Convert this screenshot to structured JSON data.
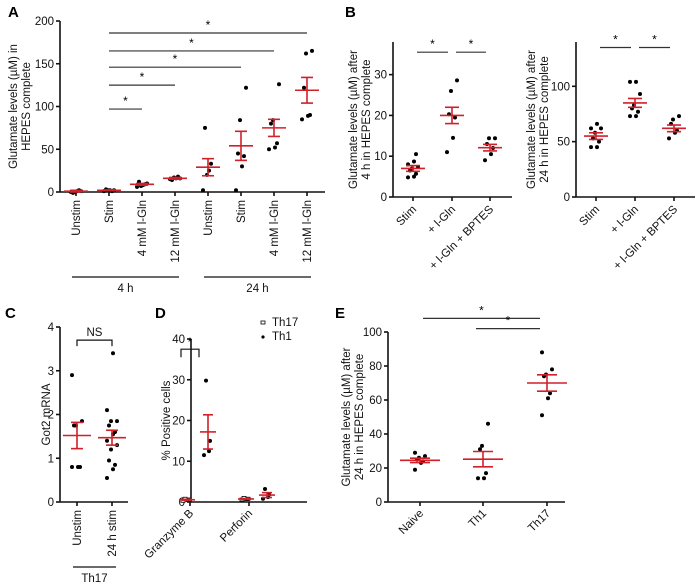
{
  "colors": {
    "mean_sem": "#d0202a",
    "points": "#000000",
    "axis": "#111111"
  },
  "chart_data": [
    {
      "panel": "A",
      "type": "scatter",
      "ylabel": "Glutamate levels (µM) in HEPES complete",
      "ylim": [
        0,
        200
      ],
      "yticks": [
        0,
        50,
        100,
        150,
        200
      ],
      "categories": [
        "Unstim",
        "Stim",
        "4 mM l-Gln",
        "12 mM l-Gln",
        "Unstim",
        "Stim",
        "4 mM l-Gln",
        "12 mM l-Gln"
      ],
      "groups": [
        {
          "label": "4 h",
          "from": 0,
          "to": 3
        },
        {
          "label": "24 h",
          "from": 4,
          "to": 7
        }
      ],
      "points": [
        [
          0,
          1,
          2,
          -1,
          0,
          1
        ],
        [
          1,
          2,
          1,
          3,
          2,
          2
        ],
        [
          6,
          8,
          9,
          12,
          7,
          10
        ],
        [
          15,
          16,
          18,
          14,
          17,
          16
        ],
        [
          2,
          25,
          33,
          75,
          20
        ],
        [
          2,
          30,
          42,
          45,
          84,
          122
        ],
        [
          50,
          52,
          57,
          80,
          84,
          126
        ],
        [
          85,
          89,
          90,
          122,
          162,
          165
        ]
      ],
      "mean": [
        1,
        2,
        9,
        16,
        29,
        54,
        75,
        119
      ],
      "sem": [
        1,
        0.5,
        1,
        1,
        10,
        17,
        10,
        15
      ],
      "significance": [
        {
          "from": 1,
          "to": 2,
          "label": "*",
          "level": 97
        },
        {
          "from": 1,
          "to": 3,
          "label": "*",
          "level": 125
        },
        {
          "from": 1,
          "to": 5,
          "label": "*",
          "level": 146
        },
        {
          "from": 1,
          "to": 6,
          "label": "*",
          "level": 165
        },
        {
          "from": 1,
          "to": 7,
          "label": "*",
          "level": 186
        }
      ]
    },
    {
      "panel": "B-left",
      "type": "scatter",
      "ylabel": "Glutamate levels (µM) after 4 h in HEPES complete",
      "ylim": [
        0,
        38
      ],
      "yticks": [
        0,
        10,
        20,
        30
      ],
      "categories": [
        "Stim",
        "+ l-Gln",
        "+ l-Gln + BPTES"
      ],
      "points": [
        [
          4.8,
          5.0,
          5.7,
          6.5,
          7.0,
          7.4,
          8.0,
          8.7,
          10.5
        ],
        [
          11,
          14.5,
          19.5,
          20.3,
          26,
          28.6
        ],
        [
          9.0,
          10.5,
          12.0,
          13.0,
          14.4,
          14.4
        ]
      ],
      "mean": [
        7.0,
        20.0,
        12.1
      ],
      "sem": [
        0.7,
        2.0,
        0.8
      ],
      "significance": [
        {
          "from": 0,
          "to": 1,
          "label": "*",
          "level": 35.5
        },
        {
          "from": 1,
          "to": 2,
          "label": "*",
          "level": 35.5
        }
      ]
    },
    {
      "panel": "B-right",
      "type": "scatter",
      "ylabel": "Glutamate levels (µM) after 24 h in HEPES complete",
      "ylim": [
        0,
        140
      ],
      "yticks": [
        0,
        50,
        100
      ],
      "categories": [
        "Stim",
        "+ l-Gln",
        "+ l-Gln + BPTES"
      ],
      "points": [
        [
          45,
          45,
          50,
          53,
          58,
          62,
          62,
          66
        ],
        [
          73,
          73,
          77,
          80,
          83,
          93,
          104,
          104
        ],
        [
          53,
          58,
          60,
          66,
          70,
          73
        ]
      ],
      "mean": [
        55,
        85,
        62
      ],
      "sem": [
        3,
        4,
        3
      ],
      "significance": [
        {
          "from": 0,
          "to": 1,
          "label": "*",
          "level": 135
        },
        {
          "from": 1,
          "to": 2,
          "label": "*",
          "level": 135
        }
      ]
    },
    {
      "panel": "C",
      "type": "scatter",
      "ylabel": "Got2 mRNA",
      "ylim": [
        0,
        4
      ],
      "yticks": [
        0,
        1,
        2,
        3,
        4
      ],
      "categories": [
        "Unstim",
        "24 h stim"
      ],
      "groups": [
        {
          "label": "Th17",
          "from": 0,
          "to": 1
        }
      ],
      "points": [
        [
          0.8,
          0.8,
          0.8,
          1.75,
          1.75,
          1.85,
          2.9
        ],
        [
          0.55,
          0.75,
          0.85,
          0.95,
          1.2,
          1.3,
          1.4,
          1.55,
          1.6,
          1.75,
          1.85,
          1.85,
          2.1,
          3.4
        ]
      ],
      "mean": [
        1.52,
        1.47
      ],
      "sem": [
        0.3,
        0.17
      ],
      "significance": [
        {
          "from": 0,
          "to": 1,
          "label": "NS",
          "level": 3.7
        }
      ]
    },
    {
      "panel": "D",
      "type": "scatter",
      "ylabel": "% Positive cells",
      "ylim": [
        0,
        40
      ],
      "yticks": [
        0,
        10,
        20,
        30,
        40
      ],
      "categories": [
        "Granzyme B",
        "Perforin"
      ],
      "legend": {
        "position": "top-right",
        "entries": [
          {
            "label": "Th17",
            "marker": "open-square"
          },
          {
            "label": "Th1",
            "marker": "dot"
          }
        ]
      },
      "series": [
        {
          "name": "Th17",
          "points": [
            [
              0.3,
              0.5,
              0.6,
              0.8
            ],
            [
              0.6,
              0.7,
              0.8,
              1.0
            ]
          ],
          "mean": [
            0.55,
            0.75
          ],
          "sem": [
            0.1,
            0.1
          ]
        },
        {
          "name": "Th1",
          "points": [
            [
              11.5,
              12.5,
              15,
              29.8
            ],
            [
              0.8,
              1.2,
              1.8,
              3.2
            ]
          ],
          "mean": [
            17.2,
            1.7
          ],
          "sem": [
            4.2,
            0.6
          ]
        }
      ],
      "significance": [
        {
          "label": "*",
          "level": 37.5,
          "category": 0
        }
      ]
    },
    {
      "panel": "E",
      "type": "scatter",
      "ylabel": "Glutamate levels (µM) after 24 h in HEPES complete",
      "ylim": [
        0,
        100
      ],
      "yticks": [
        0,
        20,
        40,
        60,
        80,
        100
      ],
      "categories": [
        "Naive",
        "Th1",
        "Th17"
      ],
      "points": [
        [
          19,
          23,
          24,
          25,
          26,
          27,
          29
        ],
        [
          14,
          14,
          17,
          31,
          33,
          46
        ],
        [
          51,
          61,
          64,
          74,
          75,
          78,
          88
        ]
      ],
      "mean": [
        24.5,
        25.2,
        70
      ],
      "sem": [
        1.3,
        4.5,
        4.8
      ],
      "significance": [
        {
          "from": 0,
          "to": 2,
          "label": "*",
          "level": 108
        },
        {
          "from": 1,
          "to": 2,
          "label": "*",
          "level": 102
        }
      ]
    }
  ],
  "labels": {
    "A": "A",
    "B": "B",
    "C": "C",
    "D": "D",
    "E": "E"
  }
}
